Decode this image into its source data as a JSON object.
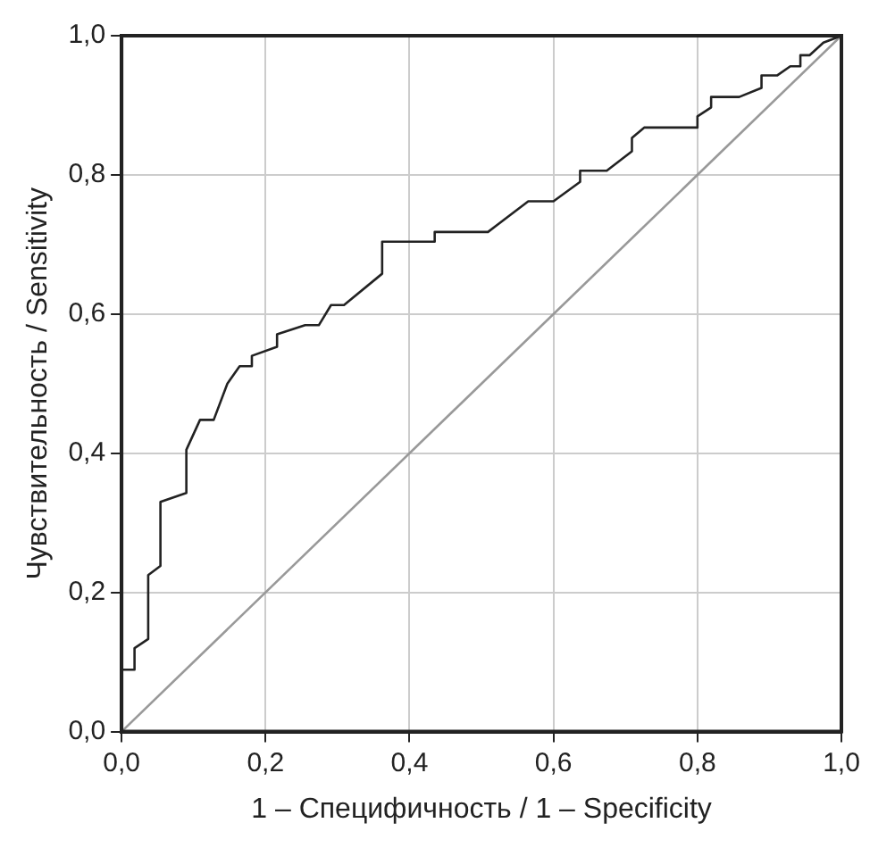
{
  "chart_data": {
    "type": "line",
    "xlabel": "1 – Специфичность / 1 – Specificity",
    "ylabel": "Чувствительность / Sensitivity",
    "xlim": [
      0,
      1
    ],
    "ylim": [
      0,
      1
    ],
    "xticks": [
      {
        "value": 0,
        "label": "0,0"
      },
      {
        "value": 0.2,
        "label": "0,2"
      },
      {
        "value": 0.4,
        "label": "0,4"
      },
      {
        "value": 0.6,
        "label": "0,6"
      },
      {
        "value": 0.8,
        "label": "0,8"
      },
      {
        "value": 1,
        "label": "1,0"
      }
    ],
    "yticks": [
      {
        "value": 0,
        "label": "0,0"
      },
      {
        "value": 0.2,
        "label": "0,2"
      },
      {
        "value": 0.4,
        "label": "0,4"
      },
      {
        "value": 0.6,
        "label": "0,6"
      },
      {
        "value": 0.8,
        "label": "0,8"
      },
      {
        "value": 1,
        "label": "1,0"
      }
    ],
    "grid": true,
    "legend": false,
    "marker": "none",
    "line_style": "solid",
    "series": [
      {
        "color": "#222222",
        "x": [
          0,
          0,
          0.018,
          0.018,
          0.037,
          0.037,
          0.054,
          0.054,
          0.09,
          0.09,
          0.109,
          0.128,
          0.147,
          0.164,
          0.181,
          0.181,
          0.216,
          0.216,
          0.255,
          0.274,
          0.291,
          0.309,
          0.362,
          0.362,
          0.435,
          0.435,
          0.509,
          0.565,
          0.6,
          0.637,
          0.637,
          0.674,
          0.709,
          0.709,
          0.726,
          0.8,
          0.8,
          0.819,
          0.819,
          0.858,
          0.889,
          0.889,
          0.911,
          0.929,
          0.943,
          0.943,
          0.956,
          0.975,
          1
        ],
        "values": [
          0,
          0.089,
          0.089,
          0.12,
          0.133,
          0.225,
          0.238,
          0.33,
          0.343,
          0.405,
          0.448,
          0.448,
          0.5,
          0.525,
          0.525,
          0.54,
          0.553,
          0.571,
          0.584,
          0.584,
          0.613,
          0.613,
          0.658,
          0.704,
          0.704,
          0.718,
          0.718,
          0.762,
          0.762,
          0.79,
          0.806,
          0.806,
          0.834,
          0.853,
          0.868,
          0.868,
          0.884,
          0.897,
          0.912,
          0.912,
          0.925,
          0.943,
          0.943,
          0.956,
          0.956,
          0.972,
          0.972,
          0.99,
          1
        ]
      },
      {
        "color": "#999999",
        "x": [
          0,
          1
        ],
        "values": [
          0,
          1
        ]
      }
    ]
  }
}
